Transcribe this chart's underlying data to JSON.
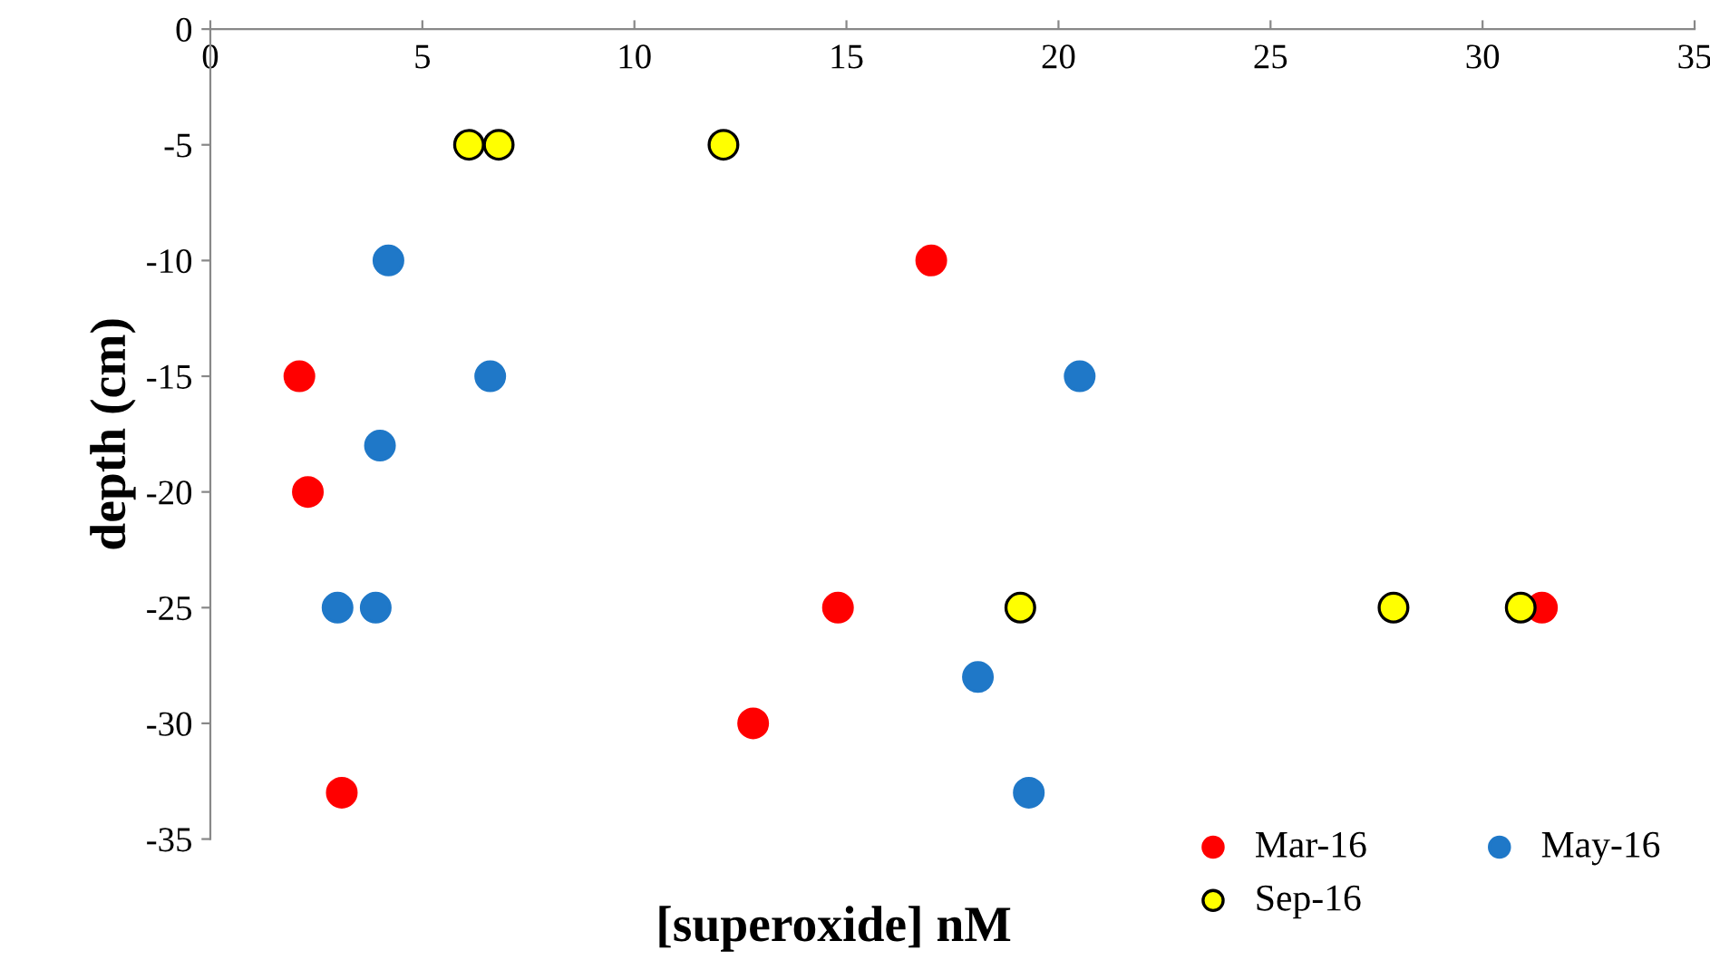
{
  "chart_data": {
    "type": "scatter",
    "xlabel": "[superoxide] nM",
    "ylabel": "depth (cm)",
    "xlim": [
      0,
      35
    ],
    "xticks": [
      0,
      5,
      10,
      15,
      20,
      25,
      30,
      35
    ],
    "ylim": [
      -35,
      0
    ],
    "yticks": [
      -35,
      -30,
      -25,
      -20,
      -15,
      -10,
      -5,
      0
    ],
    "grid": false,
    "legend": "bottom right",
    "marker": "circle",
    "series": [
      {
        "name": "Mar-16",
        "color": "#ff0000",
        "x": [
          17.0,
          2.1,
          2.3,
          14.8,
          31.4,
          12.8,
          3.1
        ],
        "values": [
          -10,
          -15,
          -20,
          -25,
          -25,
          -30,
          -33
        ]
      },
      {
        "name": "May-16",
        "color": "#1f78c8",
        "x": [
          4.2,
          6.6,
          20.5,
          4.0,
          3.0,
          3.9,
          18.1,
          19.3
        ],
        "values": [
          -10,
          -15,
          -15,
          -18,
          -25,
          -25,
          -28,
          -33
        ]
      },
      {
        "name": "Sep-16",
        "color": "#ffff00",
        "x": [
          6.1,
          6.8,
          12.1,
          19.1,
          27.9,
          30.9
        ],
        "values": [
          -5,
          -5,
          -5,
          -25,
          -25,
          -25
        ]
      }
    ]
  }
}
